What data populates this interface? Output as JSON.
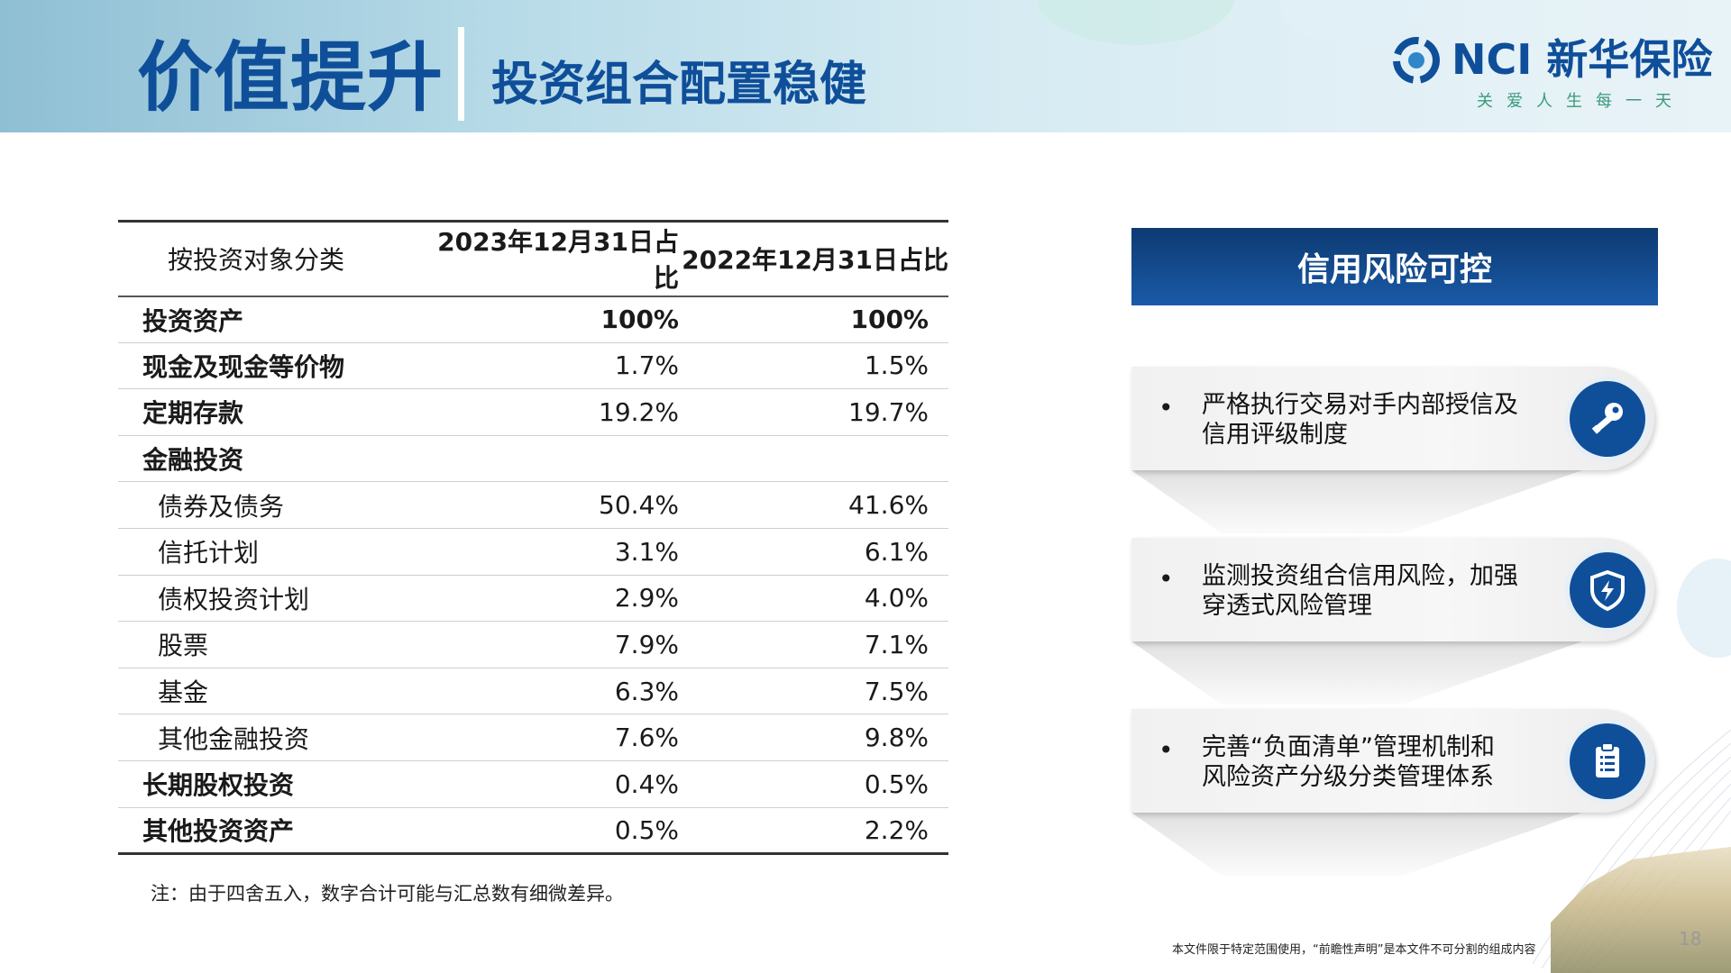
{
  "header": {
    "title": "价值提升",
    "subtitle": "投资组合配置稳健",
    "logo_text": "NCI 新华保险",
    "logo_slogan": "关爱人生每一天"
  },
  "table": {
    "headers": [
      "按投资对象分类",
      "2023年12月31日占比",
      "2022年12月31日占比"
    ],
    "rows": [
      {
        "label": "投资资产",
        "v2023": "100%",
        "v2022": "100%"
      },
      {
        "label": "现金及现金等价物",
        "v2023": "1.7%",
        "v2022": "1.5%"
      },
      {
        "label": "定期存款",
        "v2023": "19.2%",
        "v2022": "19.7%"
      },
      {
        "label": "金融投资",
        "v2023": "",
        "v2022": ""
      },
      {
        "label": "债券及债务",
        "v2023": "50.4%",
        "v2022": "41.6%"
      },
      {
        "label": "信托计划",
        "v2023": "3.1%",
        "v2022": "6.1%"
      },
      {
        "label": "债权投资计划",
        "v2023": "2.9%",
        "v2022": "4.0%"
      },
      {
        "label": "股票",
        "v2023": "7.9%",
        "v2022": "7.1%"
      },
      {
        "label": "基金",
        "v2023": "6.3%",
        "v2022": "7.5%"
      },
      {
        "label": "其他金融投资",
        "v2023": "7.6%",
        "v2022": "9.8%"
      },
      {
        "label": "长期股权投资",
        "v2023": "0.4%",
        "v2022": "0.5%"
      },
      {
        "label": "其他投资资产",
        "v2023": "0.5%",
        "v2022": "2.2%"
      }
    ],
    "note": "注：由于四舍五入，数字合计可能与汇总数有细微差异。"
  },
  "risk_panel": {
    "title": "信用风险可控",
    "items": [
      {
        "bullet": "•",
        "text_line1": "严格执行交易对手内部授信及",
        "text_line2": "信用评级制度",
        "icon": "key-icon"
      },
      {
        "bullet": "•",
        "text_line1": "监测投资组合信用风险，加强",
        "text_line2": "穿透式风险管理",
        "icon": "shield-icon"
      },
      {
        "bullet": "•",
        "text_line1": "完善“负面清单”管理机制和",
        "text_line2": "风险资产分级分类管理体系",
        "icon": "clipboard-icon"
      }
    ]
  },
  "footer": {
    "disclaimer": "本文件限于特定范围使用，“前瞻性声明”是本文件不可分割的组成内容",
    "page_number": "18"
  },
  "colors": {
    "brand_blue": "#0f4f9a",
    "panel_dark": "#0d3a72",
    "slogan_green": "#3a9a7a"
  }
}
